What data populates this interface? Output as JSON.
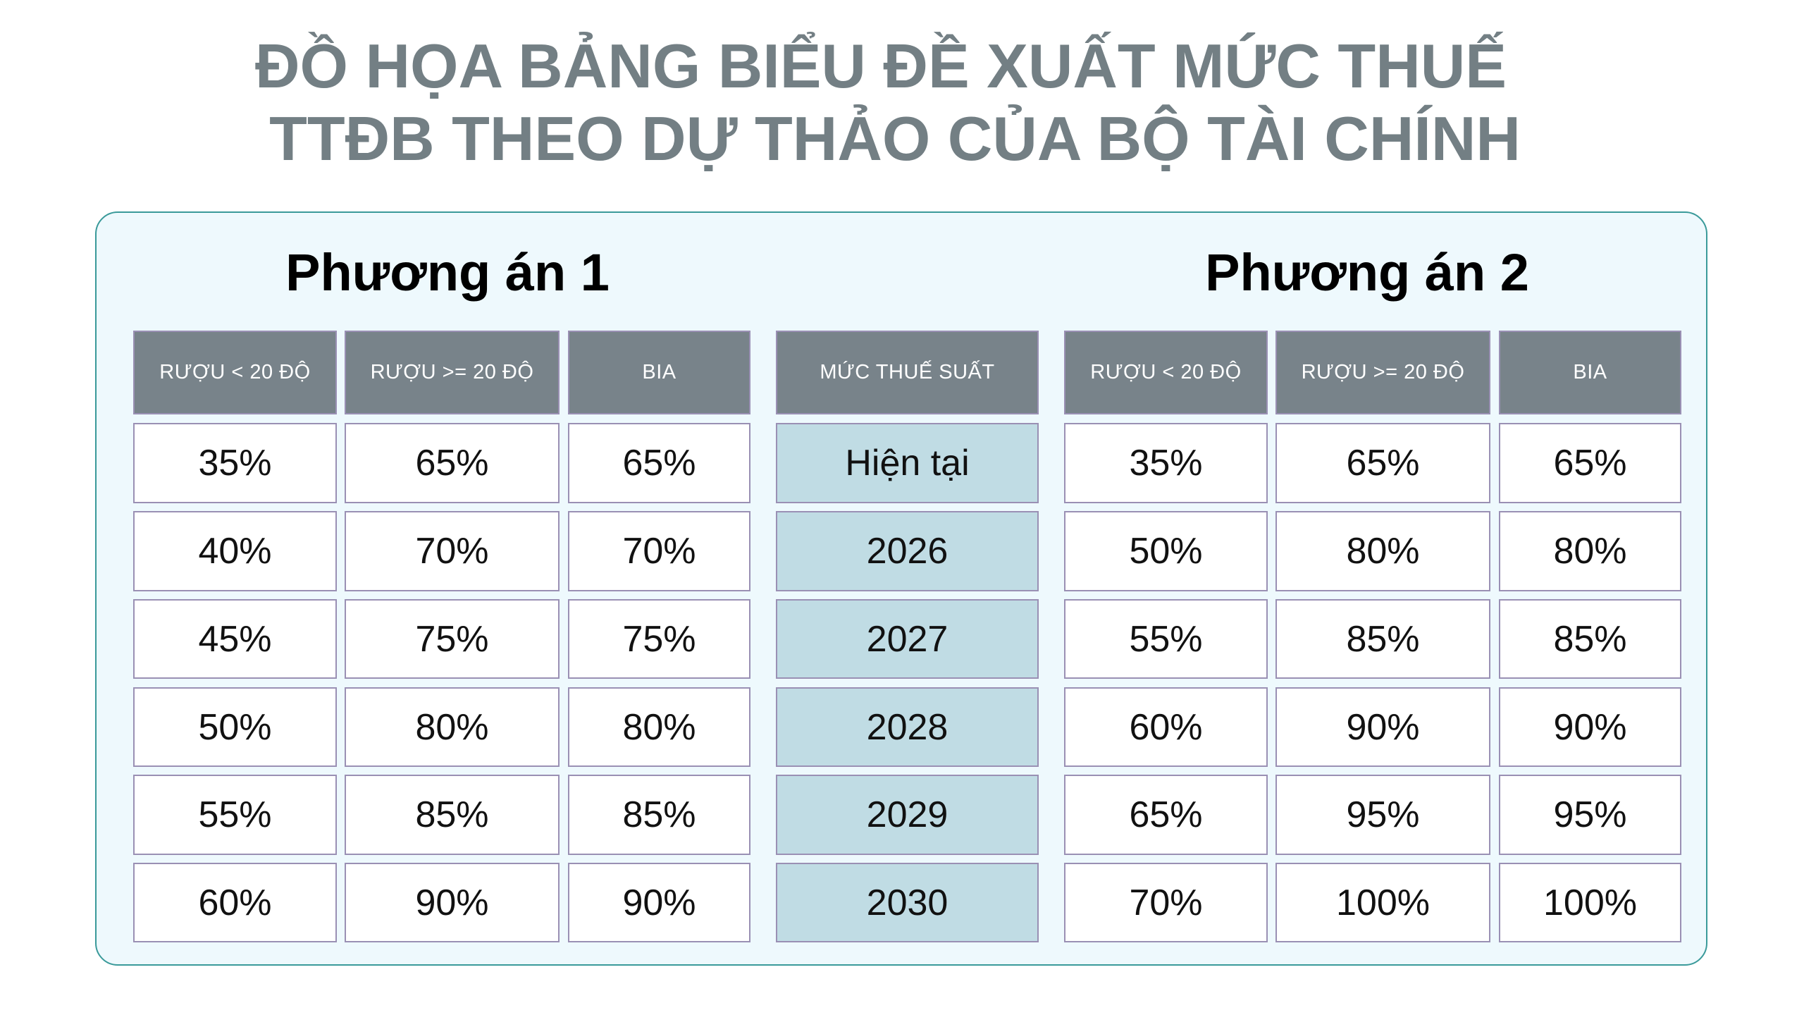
{
  "title": {
    "line1": "ĐỒ HỌA BẢNG BIỂU ĐỀ XUẤT MỨC THUẾ",
    "line2": "TTĐB THEO DỰ THẢO CỦA BỘ TÀI CHÍNH"
  },
  "colors": {
    "header_bg": "#78838a",
    "year_bg": "#c0dce4",
    "panel_bg": "#eef9fd",
    "panel_border": "#3a9a9a",
    "title": "#737f84"
  },
  "plan1": {
    "heading": "Phương án 1",
    "columns": [
      "RƯỢU < 20 ĐỘ",
      "RƯỢU >= 20 ĐỘ",
      "BIA"
    ],
    "rows": [
      [
        "35%",
        "65%",
        "65%"
      ],
      [
        "40%",
        "70%",
        "70%"
      ],
      [
        "45%",
        "75%",
        "75%"
      ],
      [
        "50%",
        "80%",
        "80%"
      ],
      [
        "55%",
        "85%",
        "85%"
      ],
      [
        "60%",
        "90%",
        "90%"
      ]
    ]
  },
  "middle": {
    "header": "MỨC THUẾ SUẤT",
    "years": [
      "Hiện tại",
      "2026",
      "2027",
      "2028",
      "2029",
      "2030"
    ]
  },
  "plan2": {
    "heading": "Phương án 2",
    "columns": [
      "RƯỢU < 20 ĐỘ",
      "RƯỢU >= 20 ĐỘ",
      "BIA"
    ],
    "rows": [
      [
        "35%",
        "65%",
        "65%"
      ],
      [
        "50%",
        "80%",
        "80%"
      ],
      [
        "55%",
        "85%",
        "85%"
      ],
      [
        "60%",
        "90%",
        "90%"
      ],
      [
        "65%",
        "95%",
        "95%"
      ],
      [
        "70%",
        "100%",
        "100%"
      ]
    ]
  }
}
